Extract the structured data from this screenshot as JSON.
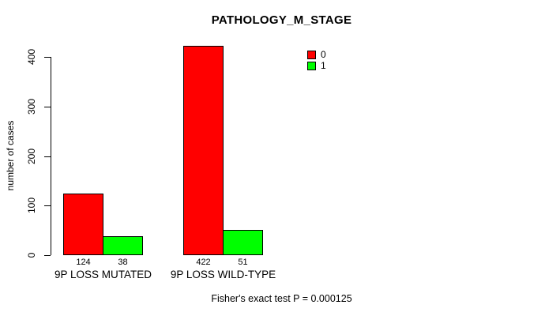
{
  "chart_data": {
    "type": "bar",
    "title": "PATHOLOGY_M_STAGE",
    "categories": [
      "9P LOSS MUTATED",
      "9P LOSS WILD-TYPE"
    ],
    "series": [
      {
        "name": "0",
        "color": "#FF0000",
        "values": [
          124,
          422
        ]
      },
      {
        "name": "1",
        "color": "#00FF00",
        "values": [
          38,
          51
        ]
      }
    ],
    "xlabel": "",
    "ylabel": "number of cases",
    "ylim": [
      0,
      400
    ],
    "yticks": [
      0,
      100,
      200,
      300,
      400
    ],
    "grid": false,
    "legend_position": "top-right",
    "bar_value_labels": [
      "124",
      "38",
      "422",
      "51"
    ],
    "annotation": "Fisher's exact test P = 0.000125"
  }
}
